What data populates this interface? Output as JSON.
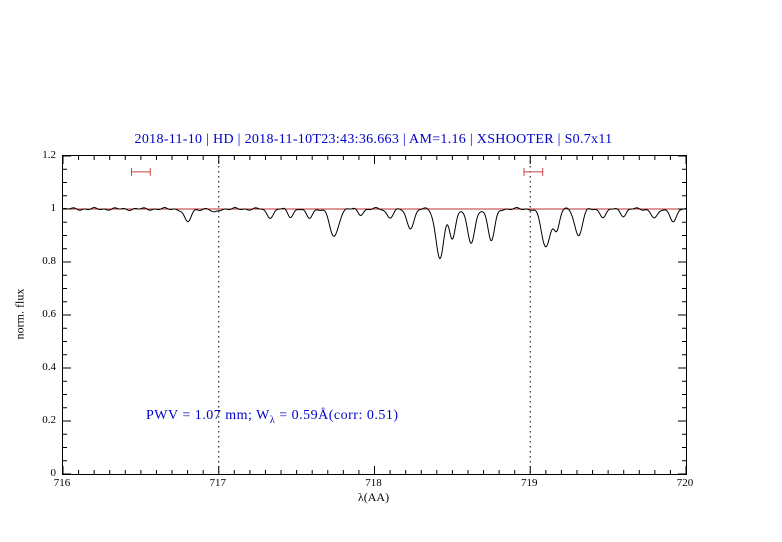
{
  "chart_data": {
    "type": "line",
    "title": "2018-11-10 | HD | 2018-11-10T23:43:36.663 | AM=1.16 | XSHOOTER | S0.7x11",
    "title_color": "#0000cc",
    "xlabel": "λ(AA)",
    "ylabel": "norm. flux",
    "xlim": [
      716,
      720
    ],
    "ylim": [
      0,
      1.2
    ],
    "x_ticks": [
      716,
      717,
      718,
      719,
      720
    ],
    "x_tick_labels": [
      "716",
      "717",
      "718",
      "719",
      "720"
    ],
    "y_ticks": [
      0,
      0.2,
      0.4,
      0.6,
      0.8,
      1,
      1.2
    ],
    "y_tick_labels": [
      "0",
      "0.2",
      "0.4",
      "0.6",
      "0.8",
      "1",
      "1.2"
    ],
    "x_minor_step": 0.1,
    "y_minor_step": 0.05,
    "grid": "off",
    "legend": "none",
    "dotted_vlines": [
      717,
      719
    ],
    "continuum_line": {
      "y": 1.0,
      "color": "#bb3333"
    },
    "spectrum": {
      "color": "#000000",
      "continuum_level": 1.0,
      "absorption_lines": [
        {
          "center": 716.8,
          "depth": 0.05,
          "sigma": 0.022
        },
        {
          "center": 716.97,
          "depth": 0.015,
          "sigma": 0.018
        },
        {
          "center": 717.33,
          "depth": 0.03,
          "sigma": 0.022
        },
        {
          "center": 717.46,
          "depth": 0.028,
          "sigma": 0.018
        },
        {
          "center": 717.58,
          "depth": 0.035,
          "sigma": 0.02
        },
        {
          "center": 717.74,
          "depth": 0.105,
          "sigma": 0.028
        },
        {
          "center": 717.91,
          "depth": 0.02,
          "sigma": 0.018
        },
        {
          "center": 718.1,
          "depth": 0.03,
          "sigma": 0.022
        },
        {
          "center": 718.23,
          "depth": 0.07,
          "sigma": 0.024
        },
        {
          "center": 718.42,
          "depth": 0.185,
          "sigma": 0.026
        },
        {
          "center": 718.5,
          "depth": 0.11,
          "sigma": 0.02
        },
        {
          "center": 718.62,
          "depth": 0.13,
          "sigma": 0.024
        },
        {
          "center": 718.75,
          "depth": 0.12,
          "sigma": 0.022
        },
        {
          "center": 719.1,
          "depth": 0.145,
          "sigma": 0.028
        },
        {
          "center": 719.17,
          "depth": 0.08,
          "sigma": 0.018
        },
        {
          "center": 719.31,
          "depth": 0.1,
          "sigma": 0.024
        },
        {
          "center": 719.47,
          "depth": 0.03,
          "sigma": 0.02
        },
        {
          "center": 719.6,
          "depth": 0.025,
          "sigma": 0.018
        },
        {
          "center": 719.8,
          "depth": 0.035,
          "sigma": 0.022
        },
        {
          "center": 719.92,
          "depth": 0.045,
          "sigma": 0.022
        }
      ]
    },
    "range_markers": {
      "color": "#cc4444",
      "items": [
        {
          "x_center": 716.5,
          "half_width": 0.06,
          "y": 1.14
        },
        {
          "x_center": 719.02,
          "half_width": 0.06,
          "y": 1.14
        }
      ]
    },
    "annotation": {
      "color": "#0000cc",
      "prefix": "PWV = 1.07 mm; W",
      "sub": "λ",
      "suffix": " = 0.59Å(corr: 0.51)",
      "x": 716.53,
      "y": 0.2
    }
  }
}
